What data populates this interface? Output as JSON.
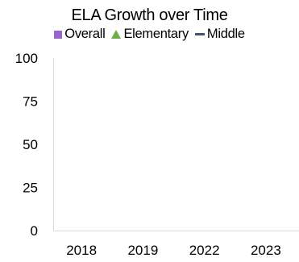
{
  "chart_data": {
    "type": "line",
    "title": "ELA Growth over Time",
    "categories": [
      "2018",
      "2019",
      "2022",
      "2023"
    ],
    "series": [
      {
        "name": "Overall",
        "marker": "square",
        "color": "#9966cc",
        "values": [
          null,
          null,
          null,
          null
        ]
      },
      {
        "name": "Elementary",
        "marker": "triangle",
        "color": "#70ad47",
        "values": [
          null,
          null,
          null,
          null
        ]
      },
      {
        "name": "Middle",
        "marker": "dash",
        "color": "#44546a",
        "values": [
          null,
          null,
          null,
          null
        ]
      }
    ],
    "yticks": [
      "100",
      "75",
      "50",
      "25",
      "0"
    ],
    "ylim": [
      0,
      100
    ],
    "grid": false,
    "legend_position": "top"
  }
}
